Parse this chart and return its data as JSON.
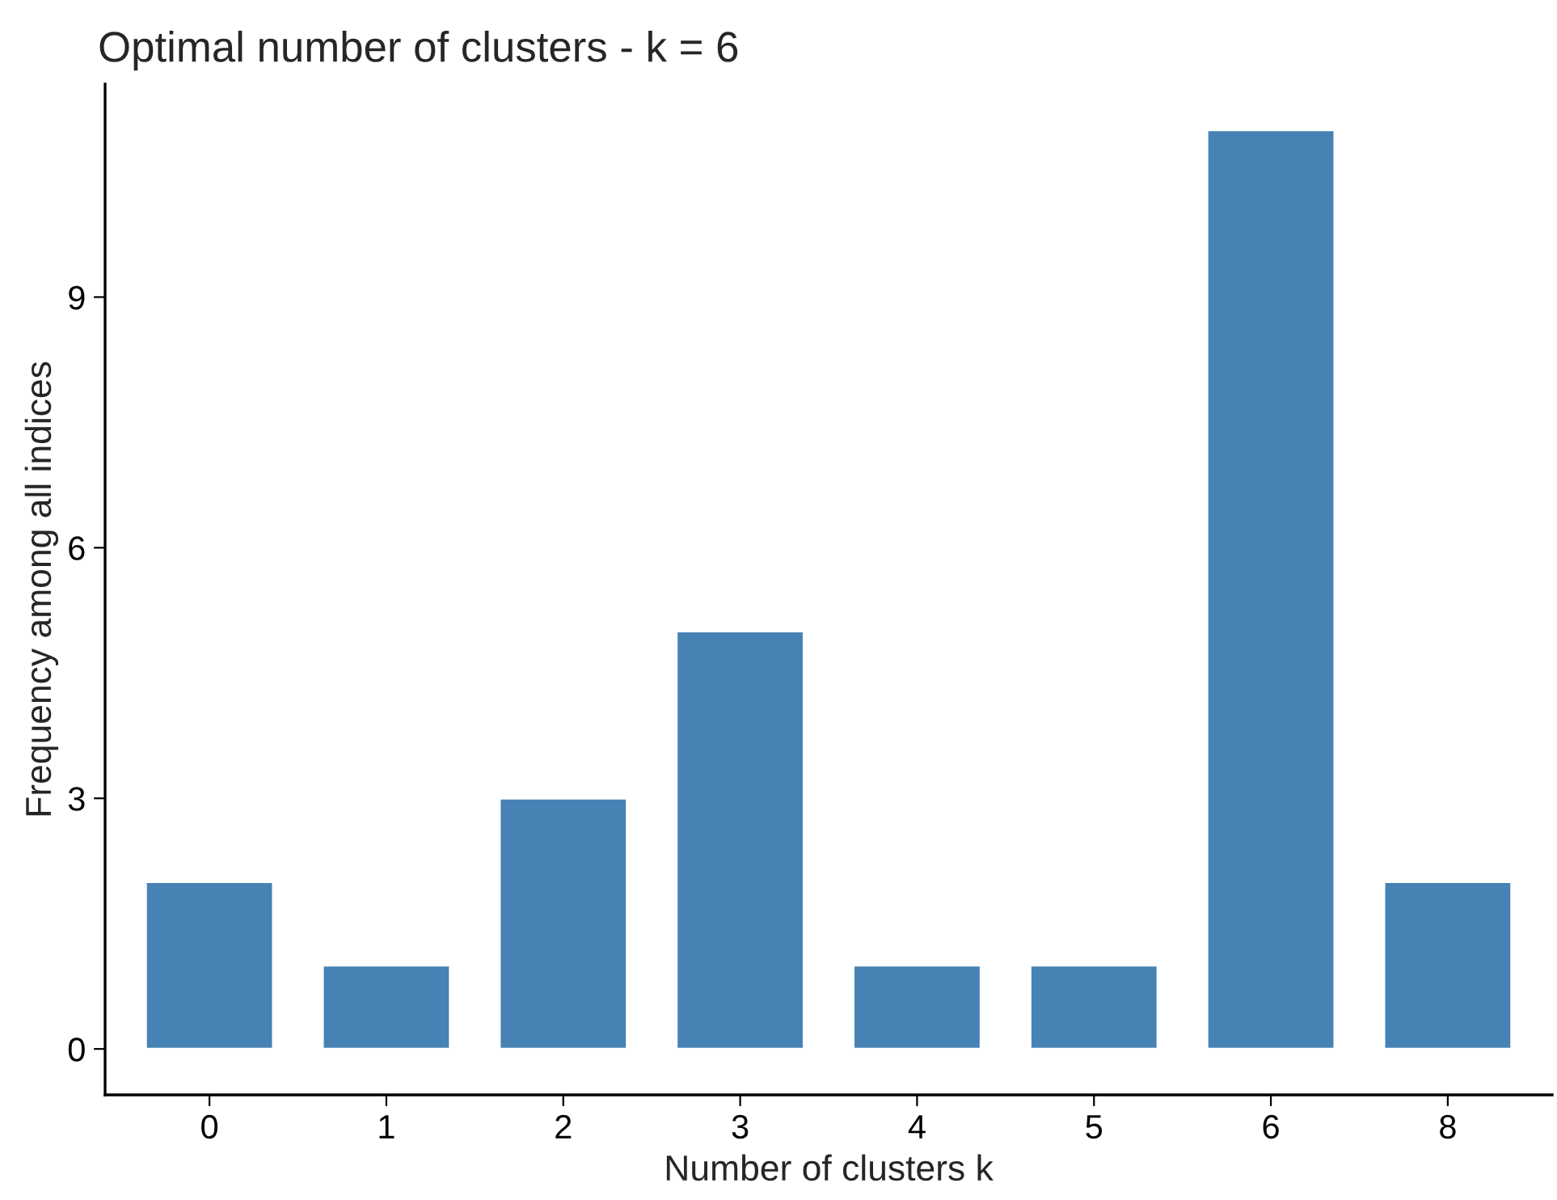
{
  "chart_data": {
    "type": "bar",
    "title": "Optimal number of clusters - k = 6",
    "xlabel": "Number of clusters k",
    "ylabel": "Frequency among all indices",
    "categories": [
      "0",
      "1",
      "2",
      "3",
      "4",
      "5",
      "6",
      "8"
    ],
    "values": [
      2,
      1,
      3,
      5,
      1,
      1,
      11,
      2
    ],
    "color": "#4682b4",
    "ylim": [
      -0.55,
      11.55
    ],
    "yticks": [
      0,
      3,
      6,
      9
    ],
    "grid": false,
    "legend": false
  }
}
